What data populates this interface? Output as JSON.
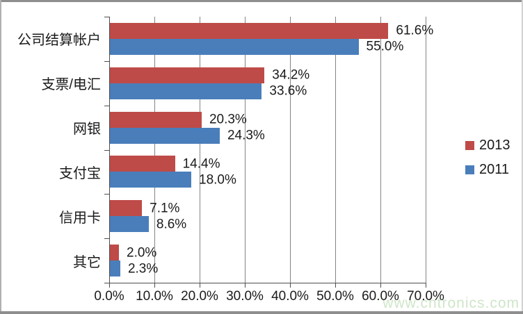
{
  "chart_data": {
    "type": "bar",
    "orientation": "horizontal",
    "title": "",
    "xlabel": "",
    "ylabel": "",
    "categories": [
      "公司结算帐户",
      "支票/电汇",
      "网银",
      "支付宝",
      "信用卡",
      "其它"
    ],
    "series": [
      {
        "name": "2013",
        "color": "#BE4B48",
        "values": [
          61.6,
          34.2,
          20.3,
          14.4,
          7.1,
          2.0
        ],
        "labels": [
          "61.6%",
          "34.2%",
          "20.3%",
          "14.4%",
          "7.1%",
          "2.0%"
        ]
      },
      {
        "name": "2011",
        "color": "#4A7EBB",
        "values": [
          55.0,
          33.6,
          24.3,
          18.0,
          8.6,
          2.3
        ],
        "labels": [
          "55.0%",
          "33.6%",
          "24.3%",
          "18.0%",
          "8.6%",
          "2.3%"
        ]
      }
    ],
    "x_ticks": [
      "0.0%",
      "10.0%",
      "20.0%",
      "30.0%",
      "40.0%",
      "50.0%",
      "60.0%",
      "70.0%"
    ],
    "xlim": [
      0,
      70
    ],
    "grid": true,
    "legend_position": "right"
  },
  "watermark": {
    "text": "www.cntronics.com",
    "color": "#cfe6c9"
  },
  "colors": {
    "gridline": "#848484",
    "axis": "#4d4d4d",
    "text": "#1a1a1a",
    "frame_dark": "#8e8e8e",
    "frame_left": "#b0b0b0",
    "frame_right": "#d2d2d2"
  }
}
